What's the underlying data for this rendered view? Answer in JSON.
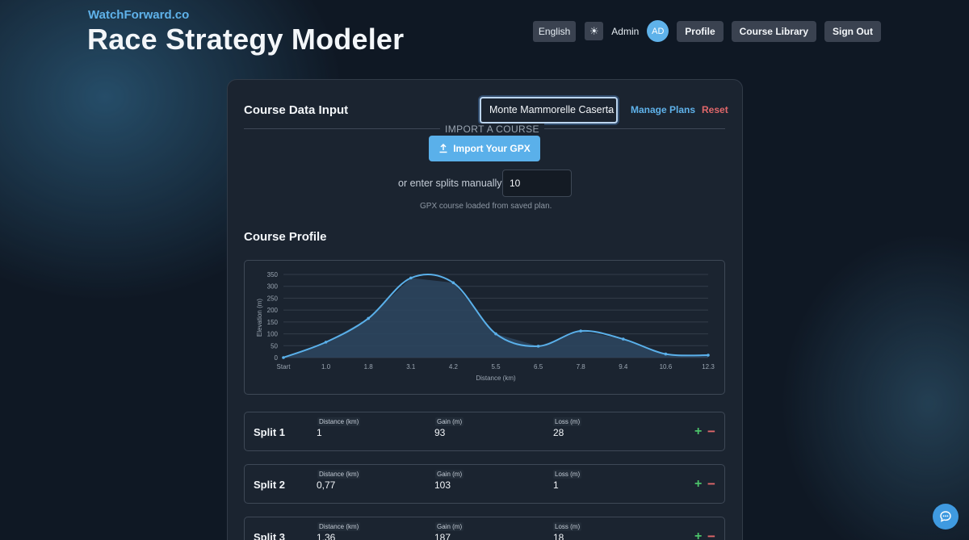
{
  "header": {
    "brand": "WatchForward.co",
    "title": "Race Strategy Modeler",
    "language": "English",
    "user_name": "Admin",
    "avatar_initials": "AD",
    "profile_label": "Profile",
    "library_label": "Course Library",
    "signout_label": "Sign Out"
  },
  "course_input": {
    "title": "Course Data Input",
    "selected_plan": "Monte Mammorelle Caserta",
    "manage_label": "Manage Plans",
    "reset_label": "Reset",
    "import_section_label": "IMPORT A COURSE",
    "import_button_label": "Import Your GPX",
    "manual_label": "or enter splits manually:",
    "manual_value": "10",
    "note": "GPX course loaded from saved plan."
  },
  "profile_title": "Course Profile",
  "chart_data": {
    "type": "area",
    "xlabel": "Distance (km)",
    "ylabel": "Elevation (m)",
    "categories": [
      "Start",
      "1.0",
      "1.8",
      "3.1",
      "4.2",
      "5.5",
      "6.5",
      "7.8",
      "9.4",
      "10.6",
      "12.3"
    ],
    "x": [
      0,
      1.0,
      1.8,
      3.1,
      4.2,
      5.5,
      6.5,
      7.8,
      9.4,
      10.6,
      12.3
    ],
    "values": [
      0,
      65,
      165,
      335,
      315,
      100,
      48,
      112,
      78,
      15,
      10
    ],
    "ylim": [
      0,
      350
    ],
    "yticks": [
      0,
      50,
      100,
      150,
      200,
      250,
      300,
      350
    ],
    "grid": true,
    "colors": {
      "line": "#5ab0ea",
      "fill": "#2d4660"
    }
  },
  "split_labels": {
    "distance": "Distance (km)",
    "gain": "Gain (m)",
    "loss": "Loss (m)"
  },
  "splits": [
    {
      "name": "Split 1",
      "distance": "1",
      "gain": "93",
      "loss": "28"
    },
    {
      "name": "Split 2",
      "distance": "0,77",
      "gain": "103",
      "loss": "1"
    },
    {
      "name": "Split 3",
      "distance": "1,36",
      "gain": "187",
      "loss": "18"
    }
  ],
  "icons": {
    "theme": "sun-icon",
    "import": "upload-icon",
    "chat": "chat-icon",
    "add": "plus-icon",
    "remove": "minus-icon"
  }
}
